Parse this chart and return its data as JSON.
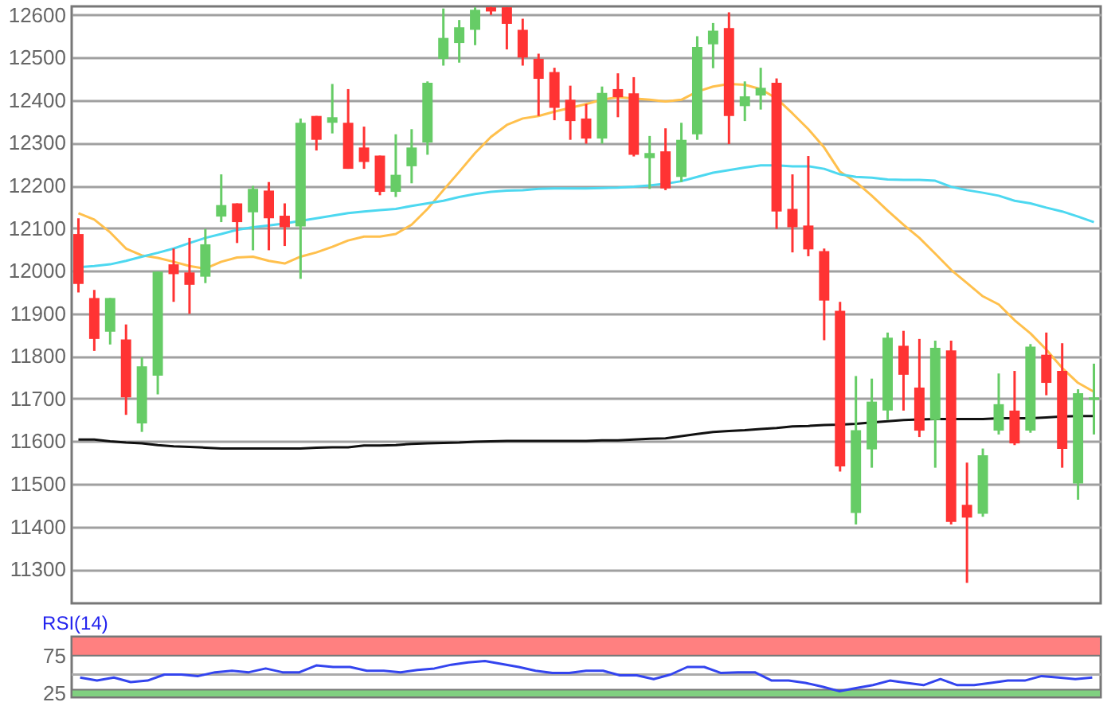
{
  "chart_data": [
    {
      "type": "candlestick",
      "categories": [
        null,
        null,
        null,
        null,
        null,
        null,
        null,
        null,
        null,
        null,
        null,
        null,
        null,
        null,
        null,
        null,
        null,
        null,
        null,
        null,
        null,
        null,
        null,
        null,
        null,
        null,
        null,
        null,
        null,
        null,
        null,
        null,
        null,
        null,
        null,
        null,
        null,
        null,
        null,
        null,
        null,
        null,
        null,
        null,
        null,
        null,
        null,
        null,
        null,
        null,
        null,
        null,
        null,
        null,
        null,
        null,
        null,
        null,
        null,
        null,
        null,
        null,
        null,
        null,
        null
      ],
      "ohlc": [
        [
          12086,
          12123,
          11949,
          11969
        ],
        [
          11936,
          11955,
          11812,
          11840
        ],
        [
          11857,
          11936,
          11827,
          11936
        ],
        [
          11839,
          11874,
          11662,
          11703
        ],
        [
          11642,
          11797,
          11622,
          11776
        ],
        [
          11754,
          11998,
          11710,
          11998
        ],
        [
          12015,
          12052,
          11927,
          11992
        ],
        [
          11996,
          12077,
          11899,
          11967
        ],
        [
          11986,
          12098,
          11971,
          12062
        ],
        [
          12127,
          12226,
          12114,
          12154
        ],
        [
          12158,
          12158,
          12065,
          12114
        ],
        [
          12137,
          12199,
          12048,
          12192
        ],
        [
          12188,
          12208,
          12048,
          12123
        ],
        [
          12129,
          12158,
          12058,
          12102
        ],
        [
          12104,
          12357,
          11981,
          12347
        ],
        [
          12363,
          12363,
          12282,
          12307
        ],
        [
          12347,
          12438,
          12322,
          12360
        ],
        [
          12347,
          12426,
          12239,
          12239
        ],
        [
          12289,
          12338,
          12239,
          12255
        ],
        [
          12270,
          12270,
          12177,
          12185
        ],
        [
          12185,
          12320,
          12173,
          12225
        ],
        [
          12245,
          12332,
          12205,
          12289
        ],
        [
          12301,
          12444,
          12272,
          12441
        ],
        [
          12497,
          12615,
          12481,
          12546
        ],
        [
          12534,
          12588,
          12488,
          12571
        ],
        [
          12565,
          12618,
          12529,
          12612
        ],
        [
          12618,
          12619,
          12600,
          12608
        ],
        [
          12618,
          12618,
          12519,
          12579
        ],
        [
          12565,
          12591,
          12481,
          12500
        ],
        [
          12497,
          12509,
          12363,
          12450
        ],
        [
          12466,
          12476,
          12353,
          12382
        ],
        [
          12401,
          12434,
          12307,
          12351
        ],
        [
          12357,
          12391,
          12298,
          12310
        ],
        [
          12310,
          12432,
          12298,
          12417
        ],
        [
          12426,
          12463,
          12360,
          12407
        ],
        [
          12416,
          12454,
          12268,
          12272
        ],
        [
          12264,
          12316,
          12192,
          12276
        ],
        [
          12280,
          12334,
          12189,
          12193
        ],
        [
          12220,
          12347,
          12208,
          12307
        ],
        [
          12320,
          12550,
          12307,
          12525
        ],
        [
          12531,
          12581,
          12475,
          12563
        ],
        [
          12569,
          12606,
          12297,
          12363
        ],
        [
          12386,
          12444,
          12351,
          12409
        ],
        [
          12411,
          12476,
          12378,
          12429
        ],
        [
          12441,
          12451,
          12098,
          12139
        ],
        [
          12145,
          12226,
          12043,
          12102
        ],
        [
          12106,
          12269,
          12034,
          12050
        ],
        [
          12046,
          12052,
          11837,
          11930
        ],
        [
          11906,
          11927,
          11529,
          11541
        ],
        [
          11432,
          11753,
          11405,
          11626
        ],
        [
          11581,
          11747,
          11538,
          11693
        ],
        [
          11672,
          11855,
          11650,
          11843
        ],
        [
          11824,
          11859,
          11672,
          11756
        ],
        [
          11726,
          11840,
          11610,
          11625
        ],
        [
          11650,
          11836,
          11538,
          11819
        ],
        [
          11813,
          11836,
          11405,
          11411
        ],
        [
          11451,
          11550,
          11268,
          11421
        ],
        [
          11430,
          11583,
          11423,
          11567
        ],
        [
          11625,
          11759,
          11616,
          11687
        ],
        [
          11672,
          11765,
          11591,
          11595
        ],
        [
          11625,
          11828,
          11620,
          11822
        ],
        [
          11803,
          11855,
          11708,
          11737
        ],
        [
          11765,
          11830,
          11538,
          11582
        ],
        [
          11501,
          11722,
          11463,
          11713
        ],
        [
          11697,
          11782,
          11616,
          11703
        ]
      ],
      "colors": [
        "#ff3333",
        "#ff3333",
        "#66cc66",
        "#ff3333",
        "#66cc66",
        "#66cc66",
        "#ff3333",
        "#ff3333",
        "#66cc66",
        "#66cc66",
        "#ff3333",
        "#66cc66",
        "#ff3333",
        "#ff3333",
        "#66cc66",
        "#ff3333",
        "#66cc66",
        "#ff3333",
        "#ff3333",
        "#ff3333",
        "#66cc66",
        "#66cc66",
        "#66cc66",
        "#66cc66",
        "#66cc66",
        "#66cc66",
        "#ff3333",
        "#ff3333",
        "#ff3333",
        "#ff3333",
        "#ff3333",
        "#ff3333",
        "#ff3333",
        "#66cc66",
        "#ff3333",
        "#ff3333",
        "#66cc66",
        "#ff3333",
        "#66cc66",
        "#66cc66",
        "#66cc66",
        "#ff3333",
        "#66cc66",
        "#66cc66",
        "#ff3333",
        "#ff3333",
        "#ff3333",
        "#ff3333",
        "#ff3333",
        "#66cc66",
        "#66cc66",
        "#66cc66",
        "#ff3333",
        "#ff3333",
        "#66cc66",
        "#ff3333",
        "#ff3333",
        "#66cc66",
        "#66cc66",
        "#ff3333",
        "#66cc66",
        "#ff3333",
        "#ff3333",
        "#66cc66",
        "#66cc66"
      ],
      "series": [
        {
          "type": "line",
          "color": "#ffc04d",
          "values": [
            12135,
            12120,
            12090,
            12052,
            12036,
            12030,
            12021,
            12011,
            12005,
            12021,
            12031,
            12033,
            12023,
            12017,
            12033,
            12043,
            12056,
            12071,
            12080,
            12080,
            12086,
            12108,
            12145,
            12189,
            12232,
            12276,
            12314,
            12342,
            12357,
            12363,
            12373,
            12382,
            12391,
            12401,
            12407,
            12404,
            12401,
            12397,
            12401,
            12420,
            12432,
            12438,
            12436,
            12426,
            12404,
            12369,
            12332,
            12289,
            12232,
            12208,
            12176,
            12141,
            12108,
            12077,
            12040,
            12002,
            11971,
            11940,
            11921,
            11884,
            11853,
            11815,
            11772,
            11737,
            11716
          ]
        },
        {
          "type": "line",
          "color": "#4dd8f0",
          "values": [
            12008,
            12011,
            12015,
            12023,
            12033,
            12042,
            12052,
            12065,
            12077,
            12086,
            12096,
            12102,
            12106,
            12111,
            12117,
            12123,
            12129,
            12135,
            12139,
            12142,
            12145,
            12152,
            12158,
            12164,
            12173,
            12180,
            12185,
            12188,
            12189,
            12192,
            12193,
            12193,
            12193,
            12194,
            12195,
            12197,
            12200,
            12204,
            12210,
            12220,
            12230,
            12236,
            12242,
            12247,
            12247,
            12245,
            12245,
            12239,
            12226,
            12220,
            12218,
            12214,
            12213,
            12213,
            12211,
            12197,
            12189,
            12183,
            12176,
            12164,
            12158,
            12148,
            12139,
            12127,
            12114
          ]
        },
        {
          "type": "line",
          "color": "#111111",
          "values": [
            11604,
            11604,
            11600,
            11597,
            11595,
            11591,
            11588,
            11587,
            11585,
            11583,
            11583,
            11583,
            11583,
            11583,
            11583,
            11585,
            11586,
            11586,
            11590,
            11590,
            11591,
            11594,
            11595,
            11596,
            11597,
            11599,
            11600,
            11601,
            11601,
            11601,
            11601,
            11601,
            11601,
            11602,
            11602,
            11604,
            11606,
            11607,
            11612,
            11617,
            11622,
            11624,
            11626,
            11629,
            11631,
            11635,
            11636,
            11638,
            11639,
            11641,
            11644,
            11647,
            11650,
            11651,
            11652,
            11652,
            11652,
            11652,
            11654,
            11654,
            11654,
            11656,
            11658,
            11659,
            11659
          ]
        }
      ],
      "ylim": [
        11220,
        12620
      ],
      "yticks": [
        11300,
        11400,
        11500,
        11600,
        11700,
        11800,
        11900,
        12000,
        12100,
        12200,
        12300,
        12400,
        12500,
        12600
      ],
      "grid": "y"
    },
    {
      "type": "line",
      "title": "RSI(14)",
      "categories": [
        null,
        null,
        null,
        null,
        null,
        null,
        null,
        null,
        null,
        null,
        null,
        null,
        null,
        null,
        null,
        null,
        null,
        null,
        null,
        null,
        null,
        null,
        null,
        null,
        null,
        null,
        null,
        null,
        null,
        null,
        null,
        null,
        null,
        null,
        null,
        null,
        null,
        null,
        null,
        null,
        null,
        null,
        null,
        null,
        null,
        null,
        null,
        null,
        null,
        null,
        null,
        null,
        null,
        null,
        null,
        null,
        null,
        null,
        null,
        null,
        null
      ],
      "series": [
        {
          "color": "#3344ee",
          "values": [
            46,
            42,
            46,
            40,
            42,
            50,
            50,
            48,
            53,
            55,
            53,
            58,
            53,
            53,
            62,
            60,
            60,
            55,
            55,
            53,
            56,
            58,
            63,
            66,
            68,
            64,
            60,
            55,
            52,
            52,
            55,
            55,
            49,
            49,
            44,
            50,
            60,
            60,
            52,
            53,
            53,
            42,
            42,
            39,
            34,
            28,
            32,
            36,
            42,
            39,
            36,
            44,
            36,
            36,
            39,
            42,
            42,
            48,
            46,
            44,
            46
          ]
        }
      ],
      "ylim": [
        20,
        100
      ],
      "yticks": [
        25,
        75
      ],
      "bands": [
        {
          "axis": "y",
          "from": 75,
          "to": 100,
          "color": "#ff8080"
        },
        {
          "axis": "y",
          "from": 20,
          "to": 30,
          "color": "#80d080"
        }
      ],
      "ref_lines": [
        {
          "axis": "y",
          "value": 50,
          "color": "#aaaaaa"
        }
      ]
    }
  ]
}
